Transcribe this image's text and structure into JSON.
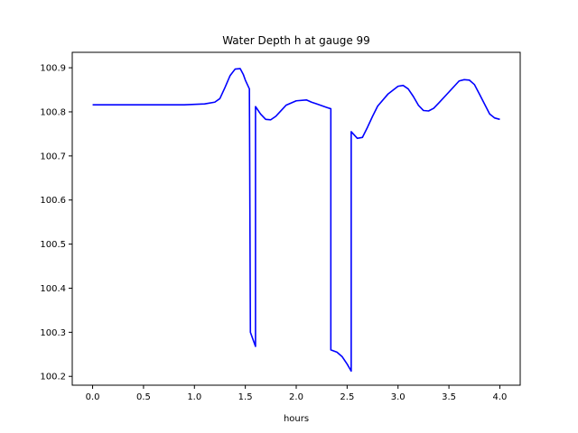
{
  "chart_data": {
    "type": "line",
    "title": "Water Depth h at gauge 99",
    "xlabel": "hours",
    "ylabel": "",
    "xlim": [
      -0.2,
      4.2
    ],
    "ylim": [
      100.18,
      100.935
    ],
    "xticks": [
      0.0,
      0.5,
      1.0,
      1.5,
      2.0,
      2.5,
      3.0,
      3.5,
      4.0
    ],
    "xtick_labels": [
      "0.0",
      "0.5",
      "1.0",
      "1.5",
      "2.0",
      "2.5",
      "3.0",
      "3.5",
      "4.0"
    ],
    "yticks": [
      100.2,
      100.3,
      100.4,
      100.5,
      100.6,
      100.7,
      100.8,
      100.9
    ],
    "ytick_labels": [
      "100.2",
      "100.3",
      "100.4",
      "100.5",
      "100.6",
      "100.7",
      "100.8",
      "100.9"
    ],
    "grid": false,
    "series": [
      {
        "color": "#0000ff",
        "x": [
          0.0,
          0.5,
          0.9,
          1.0,
          1.1,
          1.2,
          1.25,
          1.3,
          1.35,
          1.4,
          1.45,
          1.48,
          1.5,
          1.54,
          1.55,
          1.6,
          1.6,
          1.65,
          1.7,
          1.75,
          1.8,
          1.9,
          2.0,
          2.1,
          2.15,
          2.2,
          2.3,
          2.34,
          2.34,
          2.4,
          2.45,
          2.5,
          2.54,
          2.54,
          2.6,
          2.65,
          2.7,
          2.75,
          2.8,
          2.9,
          3.0,
          3.05,
          3.1,
          3.15,
          3.2,
          3.25,
          3.3,
          3.35,
          3.4,
          3.5,
          3.6,
          3.65,
          3.7,
          3.75,
          3.8,
          3.9,
          3.95,
          4.0
        ],
        "y": [
          100.816,
          100.816,
          100.816,
          100.817,
          100.818,
          100.822,
          100.83,
          100.855,
          100.882,
          100.897,
          100.898,
          100.885,
          100.872,
          100.852,
          100.3,
          100.268,
          100.812,
          100.795,
          100.783,
          100.782,
          100.79,
          100.815,
          100.825,
          100.827,
          100.822,
          100.818,
          100.81,
          100.807,
          100.26,
          100.255,
          100.245,
          100.228,
          100.212,
          100.755,
          100.74,
          100.742,
          100.765,
          100.79,
          100.813,
          100.84,
          100.858,
          100.86,
          100.852,
          100.835,
          100.815,
          100.803,
          100.802,
          100.808,
          100.82,
          100.845,
          100.87,
          100.873,
          100.872,
          100.862,
          100.84,
          100.795,
          100.786,
          100.783
        ]
      }
    ]
  }
}
